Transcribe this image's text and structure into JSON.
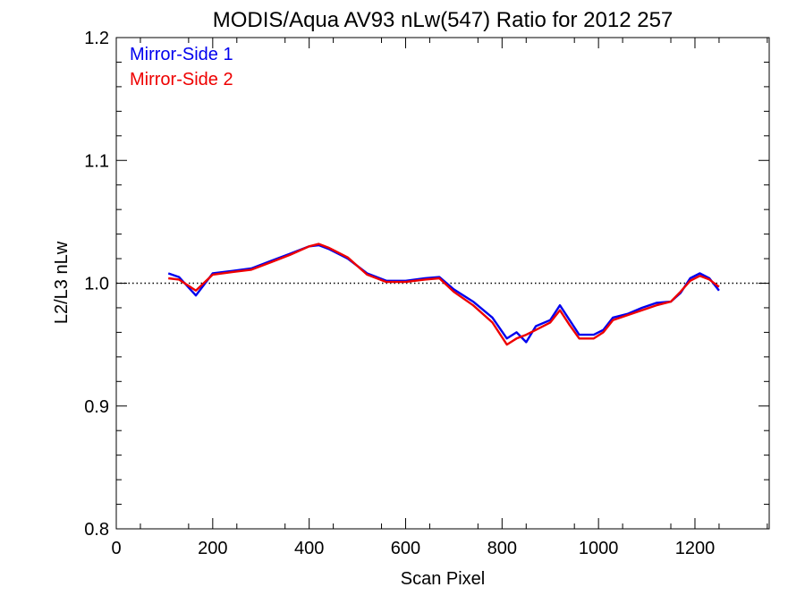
{
  "chart_data": {
    "type": "line",
    "title": "MODIS/Aqua AV93 nLw(547) Ratio for 2012 257",
    "xlabel": "Scan Pixel",
    "ylabel": "L2/L3 nLw",
    "xlim": [
      0,
      1354
    ],
    "ylim": [
      0.8,
      1.2
    ],
    "x_ticks": [
      "0",
      "200",
      "400",
      "600",
      "800",
      "1000",
      "1200"
    ],
    "y_ticks": [
      "0.8",
      "0.9",
      "1.0",
      "1.1",
      "1.2"
    ],
    "reference_line": 1.0,
    "grid": false,
    "legend_position": "top-left",
    "x": [
      108,
      130,
      165,
      200,
      240,
      280,
      320,
      360,
      400,
      420,
      440,
      480,
      520,
      560,
      600,
      640,
      670,
      700,
      740,
      780,
      810,
      830,
      850,
      870,
      900,
      920,
      940,
      960,
      990,
      1010,
      1030,
      1060,
      1090,
      1120,
      1150,
      1170,
      1190,
      1210,
      1230,
      1250
    ],
    "series": [
      {
        "name": "Mirror-Side 1",
        "color": "#0000ee",
        "values": [
          1.008,
          1.005,
          0.99,
          1.008,
          1.01,
          1.012,
          1.018,
          1.024,
          1.03,
          1.031,
          1.028,
          1.02,
          1.008,
          1.002,
          1.002,
          1.004,
          1.005,
          0.995,
          0.985,
          0.972,
          0.955,
          0.96,
          0.952,
          0.965,
          0.97,
          0.982,
          0.97,
          0.958,
          0.958,
          0.962,
          0.972,
          0.975,
          0.98,
          0.984,
          0.985,
          0.992,
          1.004,
          1.008,
          1.004,
          0.994
        ]
      },
      {
        "name": "Mirror-Side 2",
        "color": "#ee0000",
        "values": [
          1.004,
          1.003,
          0.994,
          1.007,
          1.009,
          1.011,
          1.017,
          1.023,
          1.03,
          1.032,
          1.029,
          1.021,
          1.007,
          1.001,
          1.001,
          1.003,
          1.004,
          0.993,
          0.982,
          0.968,
          0.95,
          0.955,
          0.958,
          0.962,
          0.968,
          0.978,
          0.966,
          0.955,
          0.955,
          0.96,
          0.97,
          0.974,
          0.978,
          0.982,
          0.985,
          0.993,
          1.002,
          1.006,
          1.003,
          0.997
        ]
      }
    ]
  }
}
